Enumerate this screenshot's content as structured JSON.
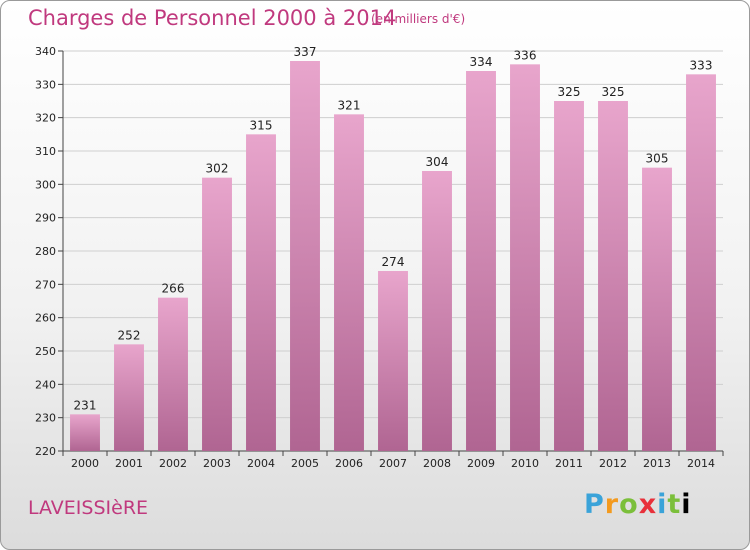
{
  "header": {
    "title": "Charges de Personnel 2000 à 2014",
    "unit": "(en milliers d'€)"
  },
  "place": "LAVEISSIèRE",
  "logo": [
    "P",
    "r",
    "o",
    "x",
    "i",
    "t",
    "i"
  ],
  "colors": {
    "accent": "#c0397e",
    "bar_top": "#e8a5cc",
    "bar_bottom": "#b06592",
    "grid": "#cfcfcf"
  },
  "chart_data": {
    "type": "bar",
    "categories": [
      "2000",
      "2001",
      "2002",
      "2003",
      "2004",
      "2005",
      "2006",
      "2007",
      "2008",
      "2009",
      "2010",
      "2011",
      "2012",
      "2013",
      "2014"
    ],
    "values": [
      231,
      252,
      266,
      302,
      315,
      337,
      321,
      274,
      304,
      334,
      336,
      325,
      325,
      305,
      333
    ],
    "title": "Charges de Personnel 2000 à 2014",
    "ylim": [
      220,
      340
    ],
    "yticks": [
      220,
      230,
      240,
      250,
      260,
      270,
      280,
      290,
      300,
      310,
      320,
      330,
      340
    ],
    "grid": true
  }
}
